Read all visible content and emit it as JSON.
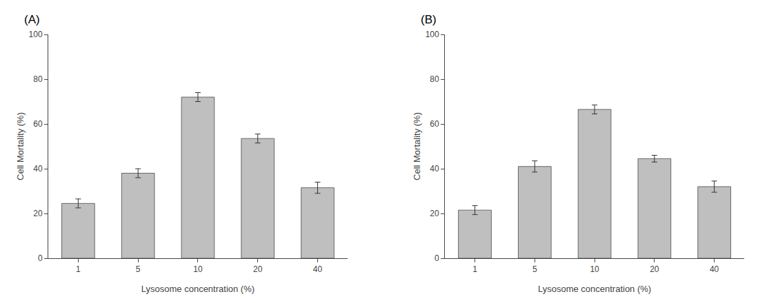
{
  "chart_data": [
    {
      "type": "bar",
      "title": "(A)",
      "categories": [
        "1",
        "5",
        "10",
        "20",
        "40"
      ],
      "values": [
        24.5,
        38.0,
        72.0,
        53.5,
        31.5
      ],
      "errors": [
        2.0,
        2.0,
        2.0,
        2.0,
        2.5
      ],
      "xlabel": "Lysosome concentration (%)",
      "ylabel": "Cell Mortality (%)",
      "ylim": [
        0,
        100
      ],
      "yticks": [
        0,
        20,
        40,
        60,
        80,
        100
      ],
      "color": "#BFBFBF",
      "grid": false
    },
    {
      "type": "bar",
      "title": "(B)",
      "categories": [
        "1",
        "5",
        "10",
        "20",
        "40"
      ],
      "values": [
        21.5,
        41.0,
        66.5,
        44.5,
        32.0
      ],
      "errors": [
        2.0,
        2.5,
        2.0,
        1.5,
        2.5
      ],
      "xlabel": "Lysosome concentration (%)",
      "ylabel": "Cell Mortality (%)",
      "ylim": [
        0,
        100
      ],
      "yticks": [
        0,
        20,
        40,
        60,
        80,
        100
      ],
      "color": "#BFBFBF",
      "grid": false
    }
  ]
}
